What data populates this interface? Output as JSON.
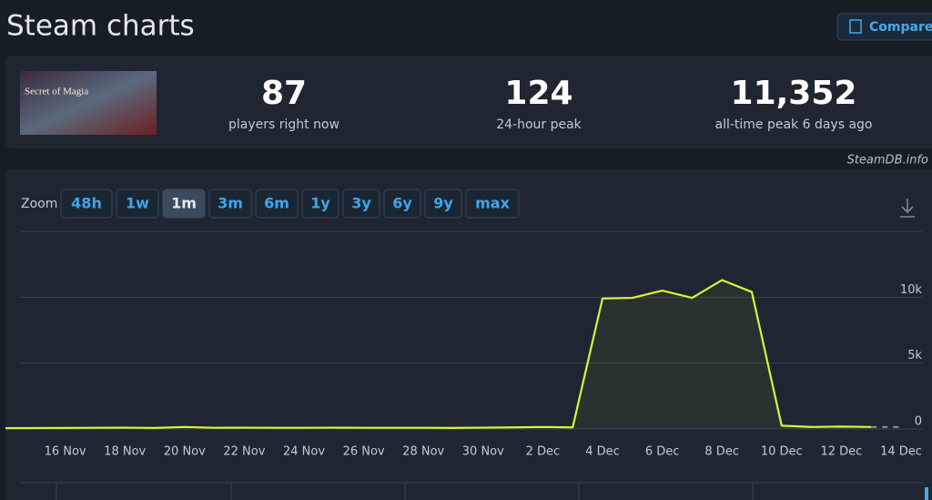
{
  "header": {
    "title": "Steam charts",
    "compare": "Compare"
  },
  "game": {
    "image_caption": "Secret of Magia"
  },
  "stats": [
    {
      "value": "87",
      "label": "players right now"
    },
    {
      "value": "124",
      "label": "24-hour peak"
    },
    {
      "value": "11,352",
      "label": "all-time peak 6 days ago"
    }
  ],
  "credit": "SteamDB.info",
  "zoom": {
    "label": "Zoom",
    "options": [
      "48h",
      "1w",
      "1m",
      "3m",
      "6m",
      "1y",
      "3y",
      "6y",
      "9y",
      "max"
    ],
    "active": "1m"
  },
  "chart_data": {
    "type": "line",
    "x": [
      "14 Nov",
      "15 Nov",
      "16 Nov",
      "17 Nov",
      "18 Nov",
      "19 Nov",
      "20 Nov",
      "21 Nov",
      "22 Nov",
      "23 Nov",
      "24 Nov",
      "25 Nov",
      "26 Nov",
      "27 Nov",
      "28 Nov",
      "29 Nov",
      "30 Nov",
      "1 Dec",
      "2 Dec",
      "3 Dec",
      "4 Dec",
      "5 Dec",
      "6 Dec",
      "7 Dec",
      "8 Dec",
      "9 Dec",
      "10 Dec",
      "11 Dec",
      "12 Dec",
      "13 Dec",
      "14 Dec"
    ],
    "series": [
      {
        "color": "#d4f53a",
        "values": [
          60,
          70,
          80,
          90,
          100,
          80,
          150,
          90,
          100,
          90,
          90,
          100,
          90,
          90,
          90,
          80,
          100,
          120,
          150,
          120,
          9900,
          9950,
          10500,
          9950,
          11300,
          10400,
          250,
          150,
          180,
          150,
          null
        ]
      }
    ],
    "xticks": [
      "16 Nov",
      "18 Nov",
      "20 Nov",
      "22 Nov",
      "24 Nov",
      "26 Nov",
      "28 Nov",
      "30 Nov",
      "2 Dec",
      "4 Dec",
      "6 Dec",
      "8 Dec",
      "10 Dec",
      "12 Dec",
      "14 Dec"
    ],
    "ylim": [
      0,
      15000
    ],
    "yticks": [
      0,
      {
        "value": 5000,
        "label": "5k"
      },
      {
        "value": 10000,
        "label": "10k"
      }
    ],
    "grid": true
  }
}
